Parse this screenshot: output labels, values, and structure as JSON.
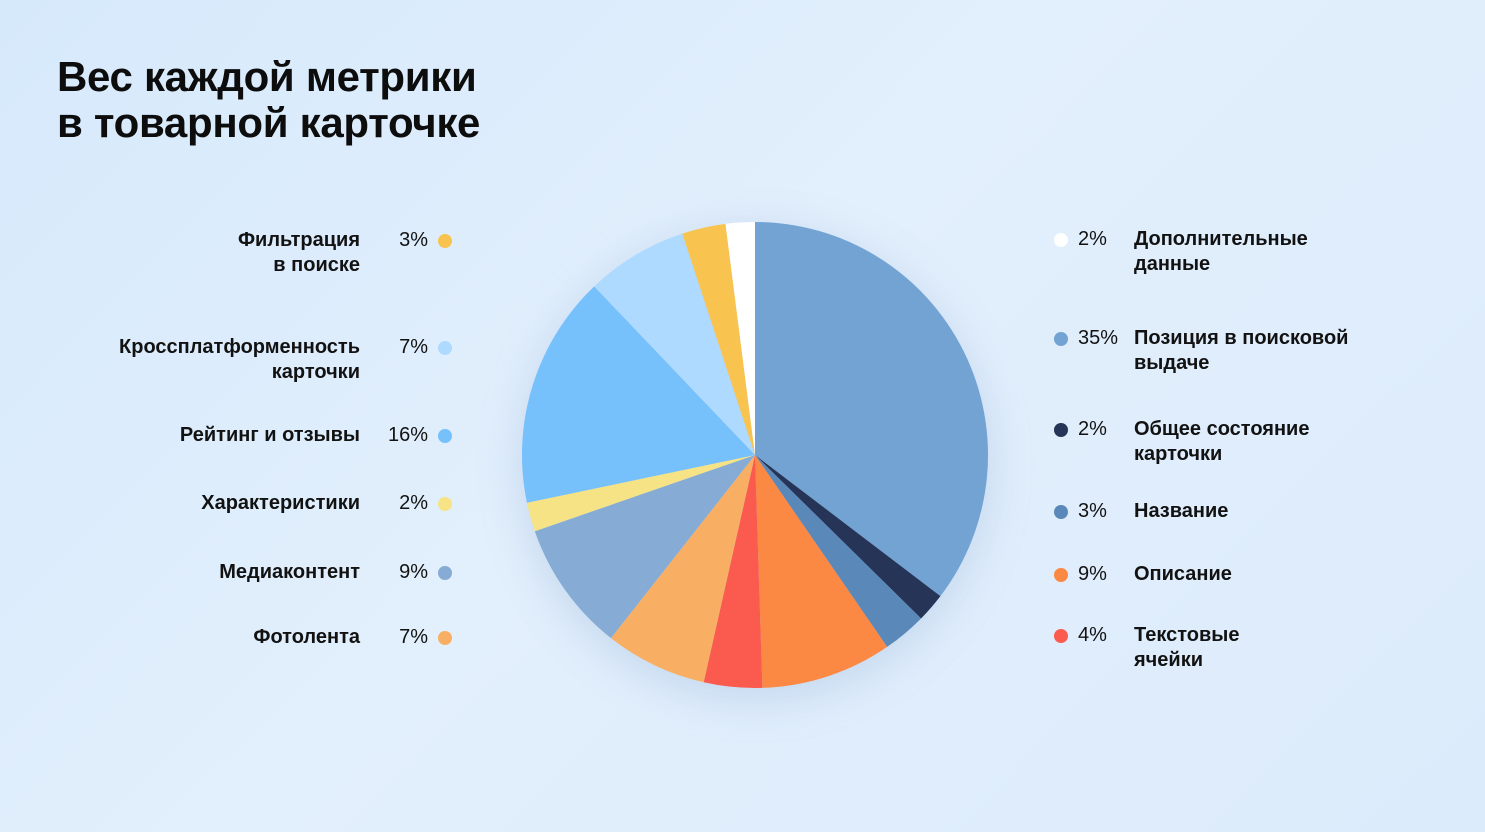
{
  "header": {
    "title_lines": [
      "Вес каждой метрики",
      "в товарной карточке"
    ]
  },
  "chart_data": {
    "type": "pie",
    "title": "Вес каждой метрики в товарной карточке",
    "start_angle_deg": 0,
    "direction": "clockwise",
    "slices": [
      {
        "label": "Позиция в поисковой выдаче",
        "label_lines": [
          "Позиция в поисковой",
          "выдаче"
        ],
        "percent_label": "35%",
        "value": 35,
        "color": "#72a3d3"
      },
      {
        "label": "Общее состояние карточки",
        "label_lines": [
          "Общее состояние",
          "карточки"
        ],
        "percent_label": "2%",
        "value": 2,
        "color": "#253457"
      },
      {
        "label": "Название",
        "label_lines": [
          "Название"
        ],
        "percent_label": "3%",
        "value": 3,
        "color": "#5a88b8"
      },
      {
        "label": "Описание",
        "label_lines": [
          "Описание"
        ],
        "percent_label": "9%",
        "value": 9,
        "color": "#fb8843"
      },
      {
        "label": "Текстовые ячейки",
        "label_lines": [
          "Текстовые",
          "ячейки"
        ],
        "percent_label": "4%",
        "value": 4,
        "color": "#fb5b4e"
      },
      {
        "label": "Фотолента",
        "label_lines": [
          "Фотолента"
        ],
        "percent_label": "7%",
        "value": 7,
        "color": "#f9af63"
      },
      {
        "label": "Медиаконтент",
        "label_lines": [
          "Медиаконтент"
        ],
        "percent_label": "9%",
        "value": 9,
        "color": "#86acd6"
      },
      {
        "label": "Характеристики",
        "label_lines": [
          "Характеристики"
        ],
        "percent_label": "2%",
        "value": 2,
        "color": "#f5e385"
      },
      {
        "label": "Рейтинг и отзывы",
        "label_lines": [
          "Рейтинг и отзывы"
        ],
        "percent_label": "16%",
        "value": 16,
        "color": "#76c0fc"
      },
      {
        "label": "Кроссплатформенность карточки",
        "label_lines": [
          "Кроссплатформенность",
          "карточки"
        ],
        "percent_label": "7%",
        "value": 7,
        "color": "#aedaff"
      },
      {
        "label": "Фильтрация в поиске",
        "label_lines": [
          "Фильтрация",
          "в поиске"
        ],
        "percent_label": "3%",
        "value": 3,
        "color": "#f9c34f"
      },
      {
        "label": "Дополнительные данные",
        "label_lines": [
          "Дополнительные",
          "данные"
        ],
        "percent_label": "2%",
        "value": 2,
        "color": "#ffffff"
      }
    ],
    "legend_left": [
      10,
      9,
      8,
      7,
      6,
      5
    ],
    "legend_right": [
      11,
      0,
      1,
      2,
      3,
      4
    ]
  }
}
